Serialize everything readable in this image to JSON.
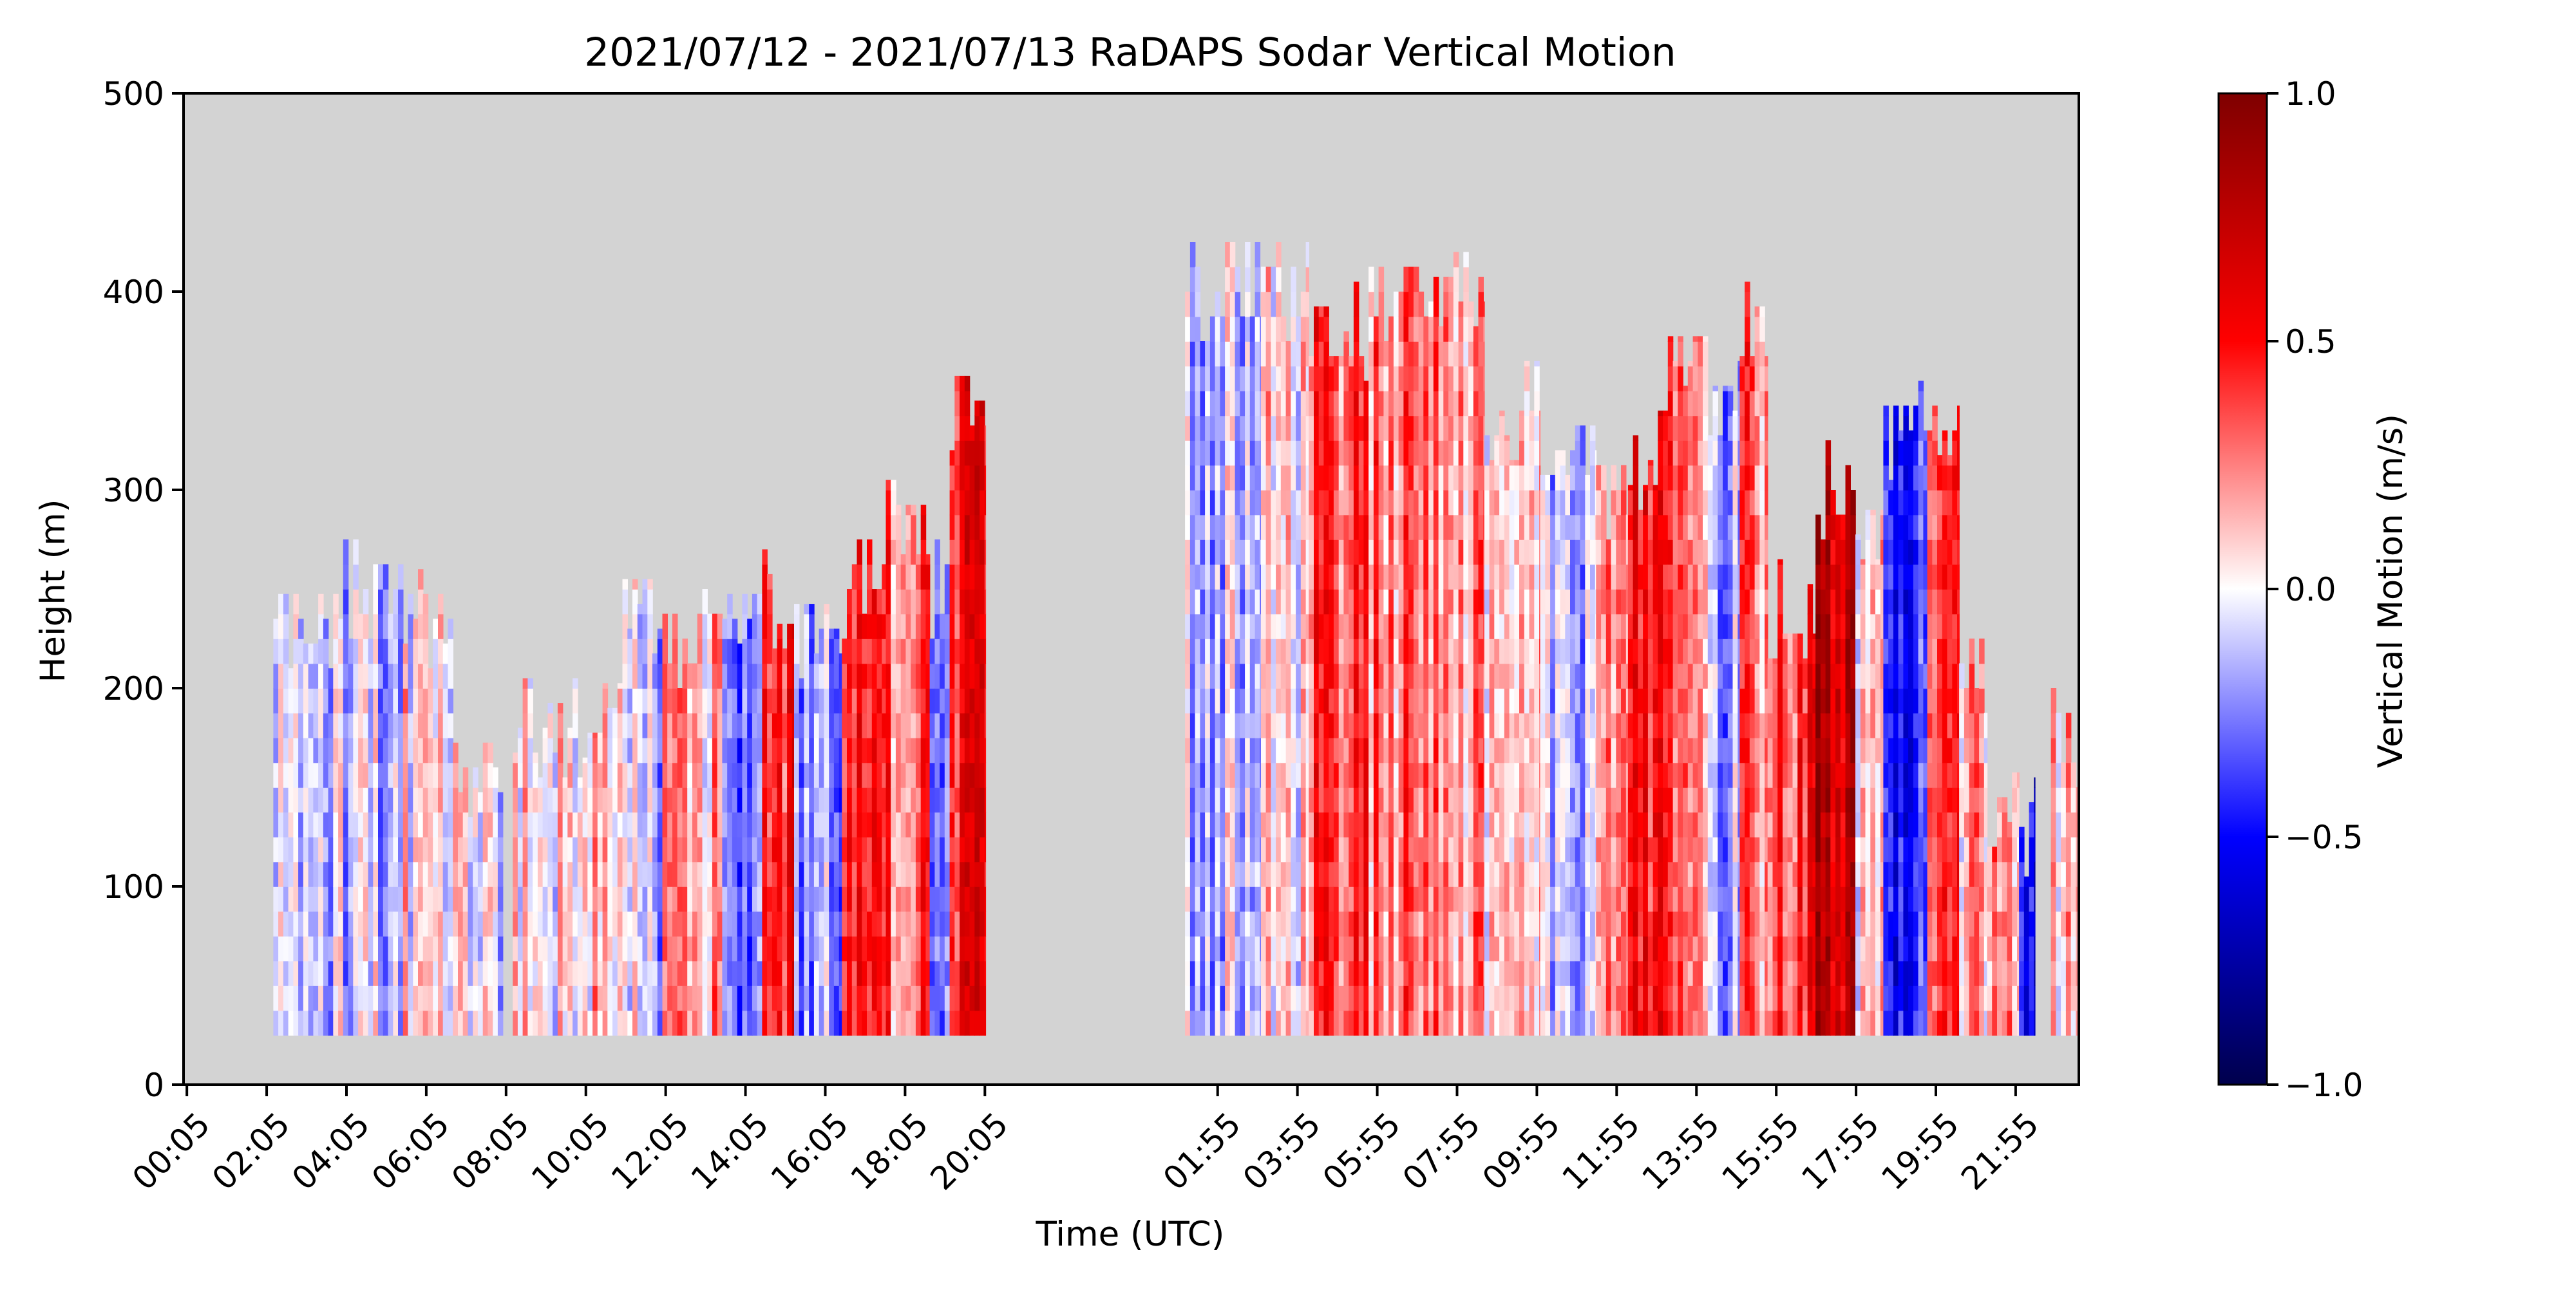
{
  "chart_data": {
    "type": "heatmap",
    "title": "2021/07/12 - 2021/07/13 RaDAPS Sodar Vertical Motion",
    "xlabel": "Time (UTC)",
    "ylabel": "Height (m)",
    "ylim": [
      0,
      500
    ],
    "yticks": [
      0,
      100,
      200,
      300,
      400,
      500
    ],
    "x_units": "hours since 2021-07-12 00:00 UTC",
    "xlim": [
      0,
      47.5
    ],
    "xticks": [
      {
        "hour": 0.0833,
        "label": "00:05"
      },
      {
        "hour": 2.0833,
        "label": "02:05"
      },
      {
        "hour": 4.0833,
        "label": "04:05"
      },
      {
        "hour": 6.0833,
        "label": "06:05"
      },
      {
        "hour": 8.0833,
        "label": "08:05"
      },
      {
        "hour": 10.0833,
        "label": "10:05"
      },
      {
        "hour": 12.0833,
        "label": "12:05"
      },
      {
        "hour": 14.0833,
        "label": "14:05"
      },
      {
        "hour": 16.0833,
        "label": "16:05"
      },
      {
        "hour": 18.0833,
        "label": "18:05"
      },
      {
        "hour": 20.0833,
        "label": "20:05"
      },
      {
        "hour": 25.9167,
        "label": "01:55"
      },
      {
        "hour": 27.9167,
        "label": "03:55"
      },
      {
        "hour": 29.9167,
        "label": "05:55"
      },
      {
        "hour": 31.9167,
        "label": "07:55"
      },
      {
        "hour": 33.9167,
        "label": "09:55"
      },
      {
        "hour": 35.9167,
        "label": "11:55"
      },
      {
        "hour": 37.9167,
        "label": "13:55"
      },
      {
        "hour": 39.9167,
        "label": "15:55"
      },
      {
        "hour": 41.9167,
        "label": "17:55"
      },
      {
        "hour": 43.9167,
        "label": "19:55"
      },
      {
        "hour": 45.9167,
        "label": "21:55"
      }
    ],
    "missing_color": "#d3d3d3",
    "colorbar": {
      "label": "Vertical Motion (m/s)",
      "range": [
        -1.0,
        1.0
      ],
      "ticks": [
        {
          "value": 1.0,
          "label": "1.0"
        },
        {
          "value": 0.5,
          "label": "0.5"
        },
        {
          "value": 0.0,
          "label": "0.0"
        },
        {
          "value": -0.5,
          "label": "−0.5"
        },
        {
          "value": -1.0,
          "label": "−1.0"
        }
      ],
      "colormap": "seismic",
      "stops": [
        "#00004c",
        "#0000ff",
        "#ffffff",
        "#ff0000",
        "#7f0000"
      ]
    },
    "data_floor_m": 25,
    "segments": [
      {
        "hour_start": 2.25,
        "hour_end": 4.0,
        "top_m": 235,
        "mean_w": -0.05
      },
      {
        "hour_start": 4.0,
        "hour_end": 5.5,
        "top_m": 250,
        "mean_w": -0.08
      },
      {
        "hour_start": 5.5,
        "hour_end": 6.75,
        "top_m": 235,
        "mean_w": 0.05
      },
      {
        "hour_start": 6.75,
        "hour_end": 8.0,
        "top_m": 160,
        "mean_w": -0.05
      },
      {
        "hour_start": 8.25,
        "hour_end": 10.0,
        "top_m": 180,
        "mean_w": 0.05
      },
      {
        "hour_start": 10.0,
        "hour_end": 11.0,
        "top_m": 190,
        "mean_w": 0.1
      },
      {
        "hour_start": 11.0,
        "hour_end": 12.0,
        "top_m": 230,
        "mean_w": -0.1
      },
      {
        "hour_start": 12.0,
        "hour_end": 13.5,
        "top_m": 225,
        "mean_w": 0.15
      },
      {
        "hour_start": 13.5,
        "hour_end": 14.5,
        "top_m": 235,
        "mean_w": -0.35
      },
      {
        "hour_start": 14.5,
        "hour_end": 15.3,
        "top_m": 245,
        "mean_w": 0.45
      },
      {
        "hour_start": 15.3,
        "hour_end": 16.5,
        "top_m": 230,
        "mean_w": -0.2
      },
      {
        "hour_start": 16.5,
        "hour_end": 17.6,
        "top_m": 250,
        "mean_w": 0.5
      },
      {
        "hour_start": 17.6,
        "hour_end": 18.7,
        "top_m": 280,
        "mean_w": 0.3
      },
      {
        "hour_start": 18.7,
        "hour_end": 19.2,
        "top_m": 250,
        "mean_w": -0.2
      },
      {
        "hour_start": 19.2,
        "hour_end": 20.1,
        "top_m": 345,
        "mean_w": 0.55
      },
      {
        "hour_start": 25.1,
        "hour_end": 27.0,
        "top_m": 400,
        "mean_w": -0.1
      },
      {
        "hour_start": 27.0,
        "hour_end": 28.2,
        "top_m": 400,
        "mean_w": 0.05
      },
      {
        "hour_start": 28.2,
        "hour_end": 29.7,
        "top_m": 380,
        "mean_w": 0.35
      },
      {
        "hour_start": 29.7,
        "hour_end": 31.2,
        "top_m": 400,
        "mean_w": 0.3
      },
      {
        "hour_start": 31.2,
        "hour_end": 32.6,
        "top_m": 395,
        "mean_w": 0.2
      },
      {
        "hour_start": 32.6,
        "hour_end": 34.0,
        "top_m": 340,
        "mean_w": 0.1
      },
      {
        "hour_start": 34.0,
        "hour_end": 35.4,
        "top_m": 320,
        "mean_w": -0.15
      },
      {
        "hour_start": 35.4,
        "hour_end": 36.2,
        "top_m": 300,
        "mean_w": 0.2
      },
      {
        "hour_start": 36.2,
        "hour_end": 37.2,
        "top_m": 315,
        "mean_w": 0.45
      },
      {
        "hour_start": 37.2,
        "hour_end": 38.2,
        "top_m": 365,
        "mean_w": 0.3
      },
      {
        "hour_start": 38.2,
        "hour_end": 39.0,
        "top_m": 340,
        "mean_w": -0.2
      },
      {
        "hour_start": 39.0,
        "hour_end": 39.7,
        "top_m": 380,
        "mean_w": 0.3
      },
      {
        "hour_start": 39.7,
        "hour_end": 40.9,
        "top_m": 240,
        "mean_w": 0.4
      },
      {
        "hour_start": 40.9,
        "hour_end": 41.9,
        "top_m": 300,
        "mean_w": 0.7
      },
      {
        "hour_start": 41.9,
        "hour_end": 42.6,
        "top_m": 290,
        "mean_w": 0.1
      },
      {
        "hour_start": 42.6,
        "hour_end": 43.7,
        "top_m": 330,
        "mean_w": -0.45
      },
      {
        "hour_start": 43.7,
        "hour_end": 44.5,
        "top_m": 330,
        "mean_w": 0.4
      },
      {
        "hour_start": 44.5,
        "hour_end": 45.2,
        "top_m": 200,
        "mean_w": 0.15
      },
      {
        "hour_start": 45.2,
        "hour_end": 46.0,
        "top_m": 145,
        "mean_w": 0.2
      },
      {
        "hour_start": 46.0,
        "hour_end": 46.4,
        "top_m": 130,
        "mean_w": -0.5
      },
      {
        "hour_start": 46.8,
        "hour_end": 47.5,
        "top_m": 175,
        "mean_w": 0.1
      }
    ]
  }
}
